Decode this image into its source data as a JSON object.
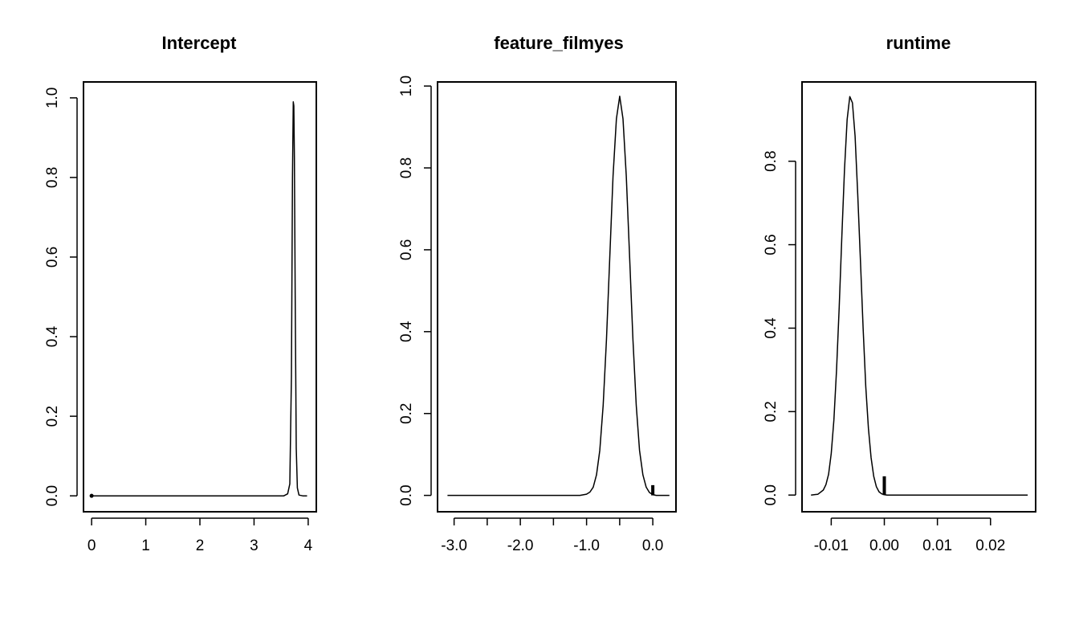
{
  "chart_data": [
    {
      "type": "line",
      "title": "Intercept",
      "xlabel": "",
      "ylabel": "",
      "xlim": [
        -0.15,
        4.15
      ],
      "ylim": [
        -0.04,
        1.04
      ],
      "x_ticks": [
        0,
        1,
        2,
        3,
        4
      ],
      "x_tick_labels": [
        "0",
        "1",
        "2",
        "3",
        "4"
      ],
      "y_ticks": [
        0,
        0.2,
        0.4,
        0.6,
        0.8,
        1.0
      ],
      "y_tick_labels": [
        "0.0",
        "0.2",
        "0.4",
        "0.6",
        "0.8",
        "1.0"
      ],
      "series": [
        {
          "x": [
            0,
            3.55,
            3.62,
            3.66,
            3.69,
            3.71,
            3.725,
            3.735,
            3.745,
            3.76,
            3.78,
            3.8,
            3.83,
            3.9,
            3.98
          ],
          "y": [
            0,
            0,
            0.005,
            0.03,
            0.3,
            0.8,
            0.99,
            0.98,
            0.85,
            0.5,
            0.12,
            0.02,
            0.002,
            0,
            0
          ]
        }
      ],
      "point_mass": {
        "x": 0,
        "height": 0.003
      },
      "grid": false
    },
    {
      "type": "line",
      "title": "feature_filmyes",
      "xlabel": "",
      "ylabel": "",
      "xlim": [
        -3.25,
        0.35
      ],
      "ylim": [
        -0.04,
        1.01
      ],
      "x_ticks": [
        -3.0,
        -2.5,
        -2.0,
        -1.5,
        -1.0,
        -0.5,
        0.0
      ],
      "x_tick_labels": [
        "-3.0",
        "",
        "-2.0",
        "",
        "-1.0",
        "",
        "0.0"
      ],
      "y_ticks": [
        0,
        0.2,
        0.4,
        0.6,
        0.8,
        1.0
      ],
      "y_tick_labels": [
        "0.0",
        "0.2",
        "0.4",
        "0.6",
        "0.8",
        "1.0"
      ],
      "series": [
        {
          "x": [
            -3.1,
            -1.1,
            -1.0,
            -0.95,
            -0.9,
            -0.85,
            -0.8,
            -0.75,
            -0.7,
            -0.65,
            -0.6,
            -0.55,
            -0.5,
            -0.45,
            -0.4,
            -0.35,
            -0.3,
            -0.25,
            -0.2,
            -0.15,
            -0.1,
            -0.05,
            0.0,
            0.05,
            0.1,
            0.2,
            0.25
          ],
          "y": [
            0,
            0,
            0.003,
            0.008,
            0.02,
            0.05,
            0.11,
            0.22,
            0.38,
            0.58,
            0.78,
            0.92,
            0.975,
            0.92,
            0.78,
            0.58,
            0.38,
            0.22,
            0.11,
            0.05,
            0.02,
            0.007,
            0.002,
            0,
            0,
            0,
            0
          ]
        }
      ],
      "point_mass": {
        "x": 0.0,
        "height": 0.025
      },
      "grid": false
    },
    {
      "type": "line",
      "title": "runtime",
      "xlabel": "",
      "ylabel": "",
      "xlim": [
        -0.0155,
        0.0285
      ],
      "ylim": [
        -0.04,
        0.99
      ],
      "x_ticks": [
        -0.01,
        0.0,
        0.01,
        0.02
      ],
      "x_tick_labels": [
        "-0.01",
        "0.00",
        "0.01",
        "0.02"
      ],
      "y_ticks": [
        0,
        0.2,
        0.4,
        0.6,
        0.8
      ],
      "y_tick_labels": [
        "0.0",
        "0.2",
        "0.4",
        "0.6",
        "0.8"
      ],
      "series": [
        {
          "x": [
            -0.0138,
            -0.0125,
            -0.0115,
            -0.011,
            -0.0105,
            -0.01,
            -0.0095,
            -0.009,
            -0.0085,
            -0.008,
            -0.0075,
            -0.007,
            -0.0065,
            -0.006,
            -0.0055,
            -0.005,
            -0.0045,
            -0.004,
            -0.0035,
            -0.003,
            -0.0025,
            -0.002,
            -0.0015,
            -0.001,
            -0.0005,
            0.0,
            0.0005,
            0.01,
            0.02,
            0.027
          ],
          "y": [
            0,
            0.002,
            0.012,
            0.025,
            0.05,
            0.1,
            0.18,
            0.3,
            0.45,
            0.62,
            0.78,
            0.9,
            0.955,
            0.94,
            0.86,
            0.72,
            0.56,
            0.4,
            0.26,
            0.16,
            0.09,
            0.045,
            0.02,
            0.008,
            0.003,
            0.001,
            0,
            0,
            0,
            0
          ]
        }
      ],
      "point_mass": {
        "x": 0.0,
        "height": 0.045
      },
      "grid": false
    }
  ]
}
